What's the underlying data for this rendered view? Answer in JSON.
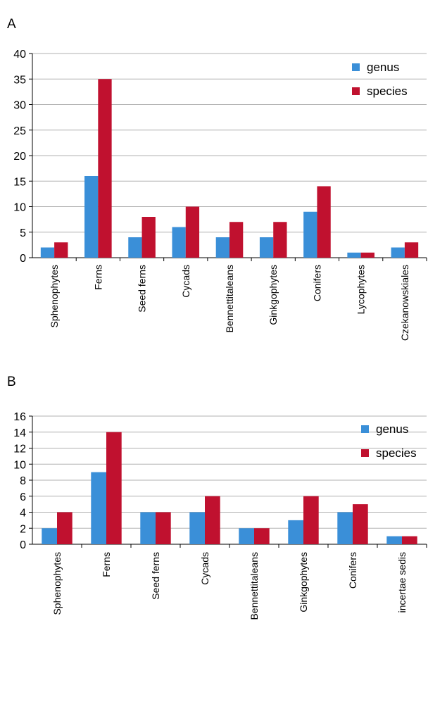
{
  "chart_data": [
    {
      "type": "bar",
      "panel_label": "A",
      "categories": [
        "Sphenophytes",
        "Ferns",
        "Seed ferns",
        "Cycads",
        "Bennettitaleans",
        "Ginkgophytes",
        "Conifers",
        "Lycophytes",
        "Czekanowskiales"
      ],
      "series": [
        {
          "name": "genus",
          "color": "#3a8fd8",
          "values": [
            2,
            16,
            4,
            6,
            4,
            4,
            9,
            1,
            2
          ]
        },
        {
          "name": "species",
          "color": "#c0112f",
          "values": [
            3,
            35,
            8,
            10,
            7,
            7,
            14,
            1,
            3
          ]
        }
      ],
      "ylim": [
        0,
        40
      ],
      "yticks": [
        "0",
        "5",
        "10",
        "15",
        "20",
        "25",
        "30",
        "35",
        "40"
      ],
      "grid": true,
      "legend": "top-right"
    },
    {
      "type": "bar",
      "panel_label": "B",
      "categories": [
        "Sphenophytes",
        "Ferns",
        "Seed ferns",
        "Cycads",
        "Bennettitaleans",
        "Ginkgophytes",
        "Conifers",
        "incertae sedis"
      ],
      "series": [
        {
          "name": "genus",
          "color": "#3a8fd8",
          "values": [
            2,
            9,
            4,
            4,
            2,
            3,
            4,
            1
          ]
        },
        {
          "name": "species",
          "color": "#c0112f",
          "values": [
            4,
            14,
            4,
            6,
            2,
            6,
            5,
            1
          ]
        }
      ],
      "ylim": [
        0,
        16
      ],
      "yticks": [
        "0",
        "2",
        "4",
        "6",
        "8",
        "10",
        "12",
        "14",
        "16"
      ],
      "grid": true,
      "legend": "top-right"
    }
  ]
}
